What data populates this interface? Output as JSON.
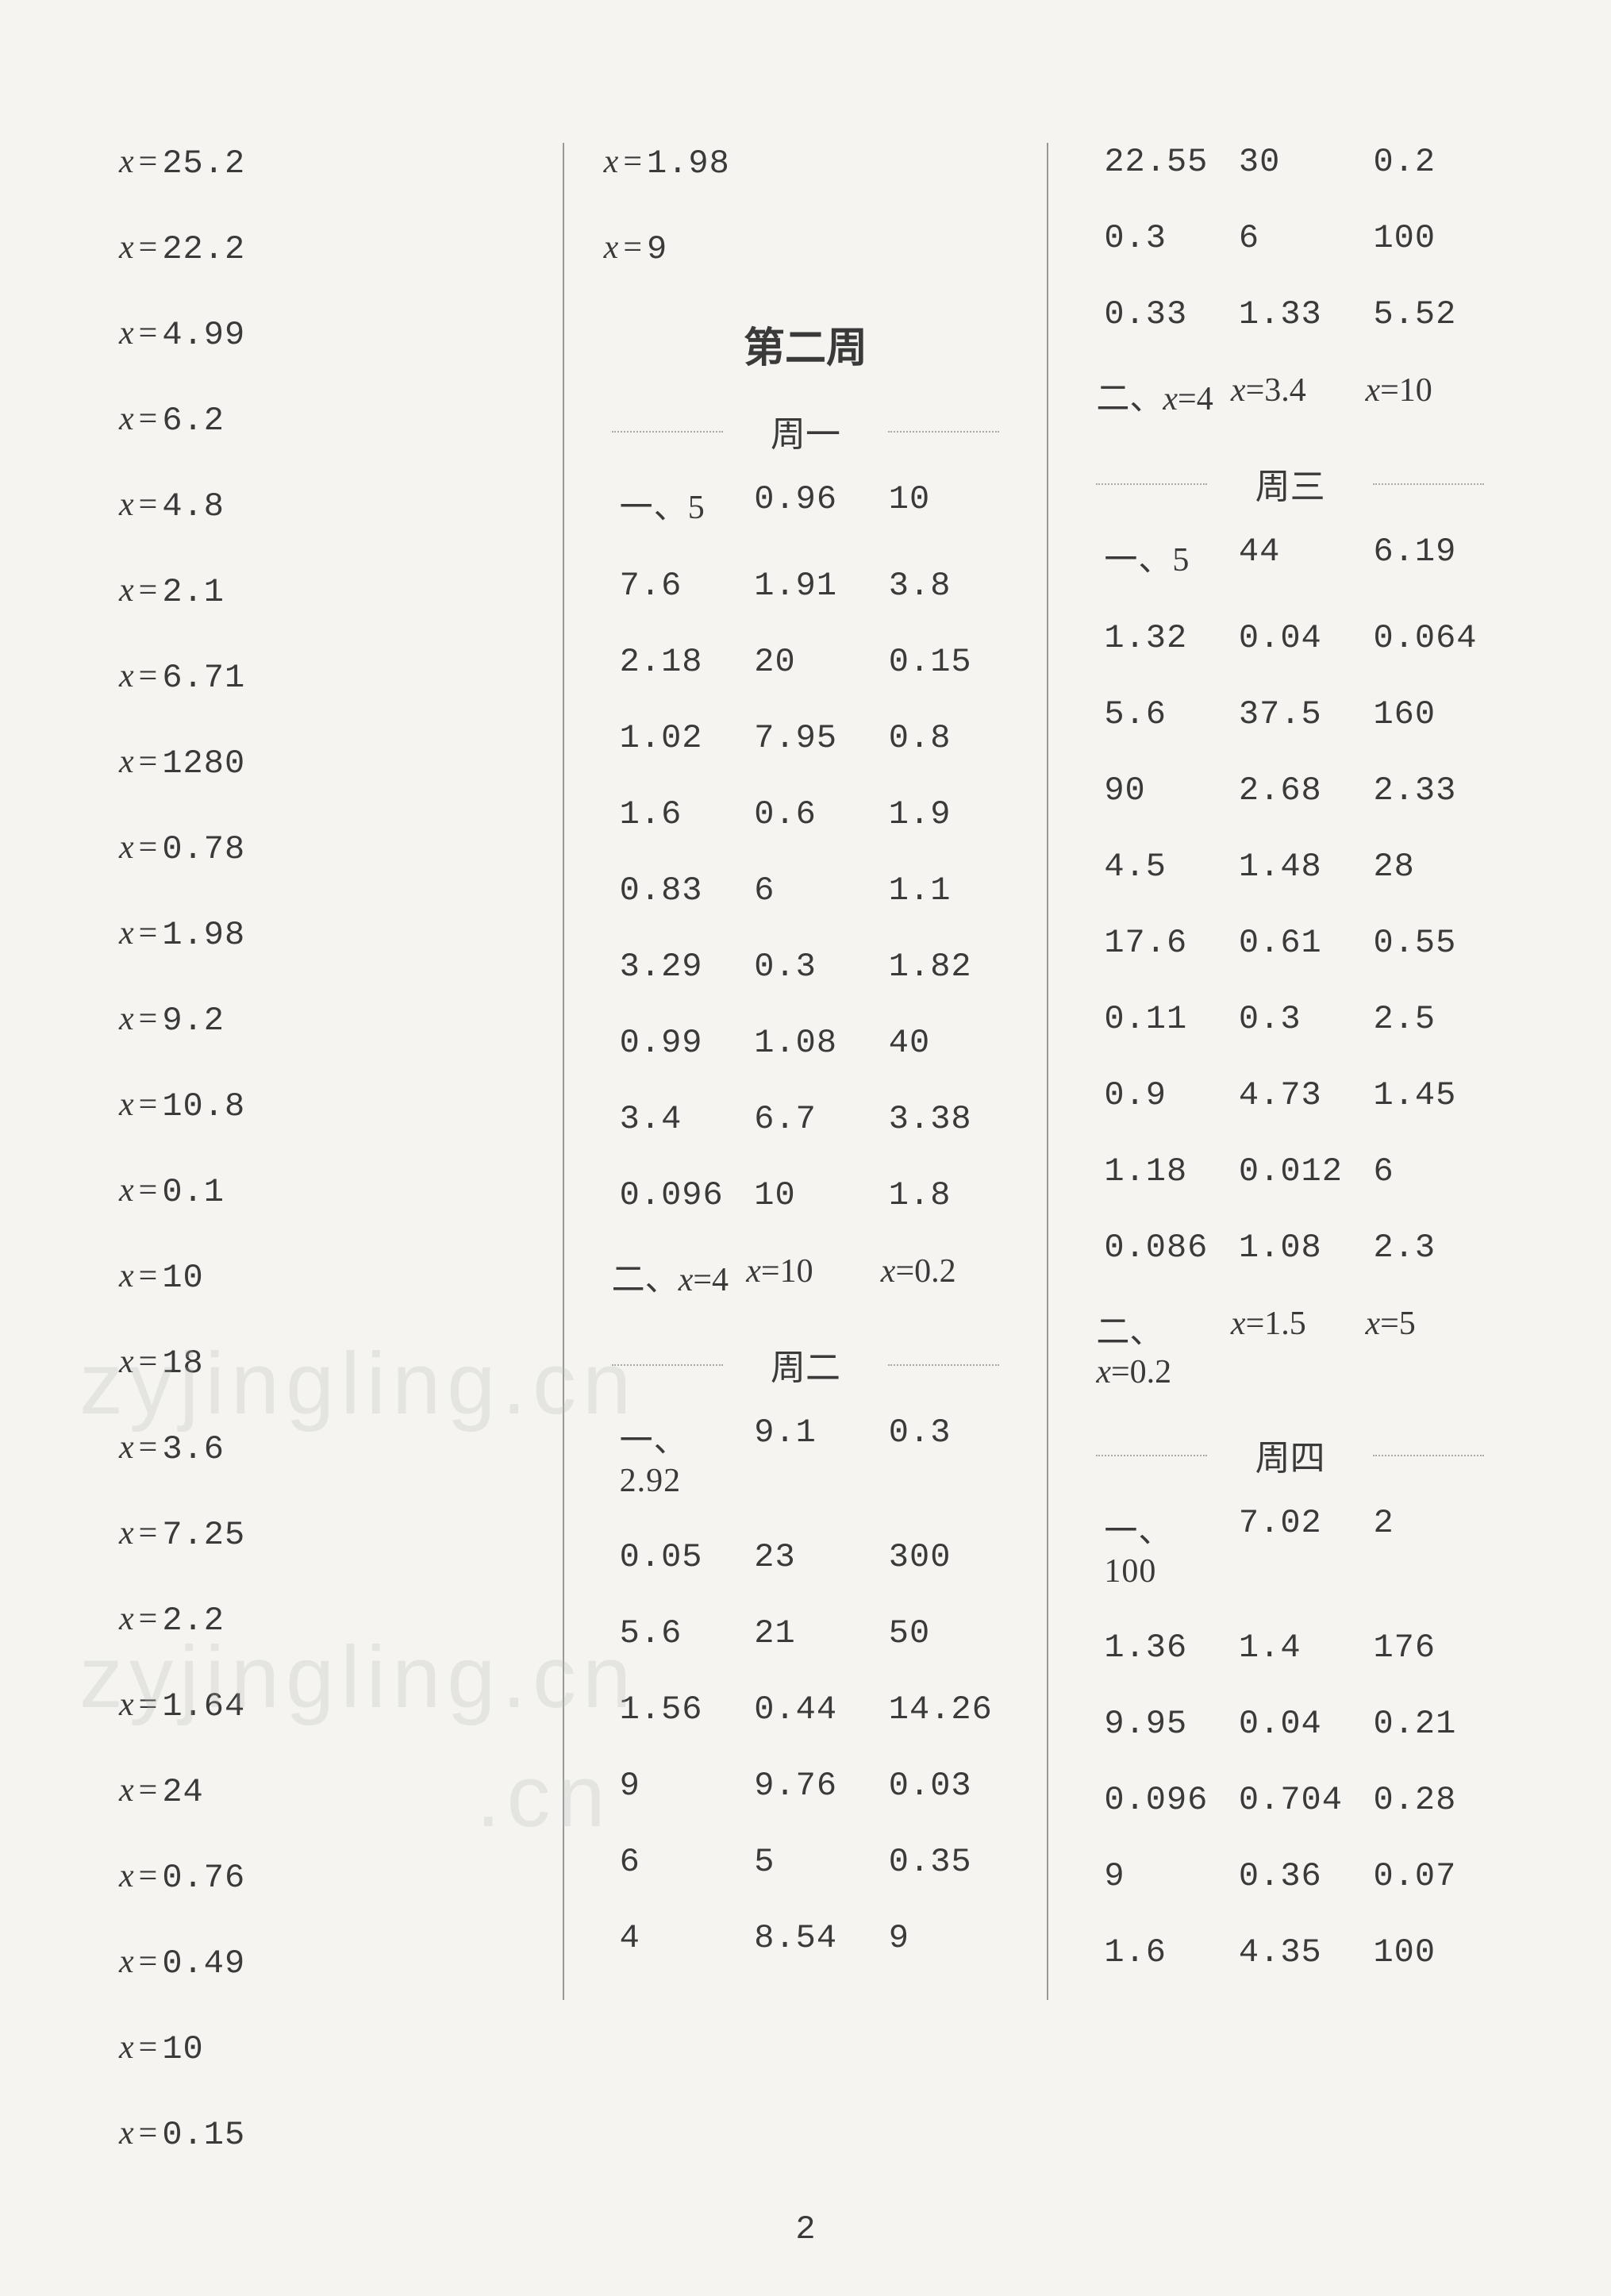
{
  "page_number": "2",
  "background_color": "#f5f4f0",
  "text_color": "#3a3a3a",
  "font_size_body": 42,
  "font_size_title": 52,
  "font_size_day": 44,
  "watermark_text": "zyjingling.cn",
  "col1": {
    "equations": [
      "25.2",
      "22.2",
      "4.99",
      "6.2",
      "4.8",
      "2.1",
      "6.71",
      "1280",
      "0.78",
      "1.98",
      "9.2",
      "10.8",
      "0.1",
      "10",
      "18",
      "3.6",
      "7.25",
      "2.2",
      "1.64",
      "24",
      "0.76",
      "0.49",
      "10",
      "0.15"
    ]
  },
  "col2": {
    "top_equations": [
      "1.98",
      "9"
    ],
    "week_title": "第二周",
    "days": {
      "mon": {
        "label": "周一",
        "section1_prefix": "一、",
        "section1_rows": [
          [
            "5",
            "0.96",
            "10"
          ],
          [
            "7.6",
            "1.91",
            "3.8"
          ],
          [
            "2.18",
            "20",
            "0.15"
          ],
          [
            "1.02",
            "7.95",
            "0.8"
          ],
          [
            "1.6",
            "0.6",
            "1.9"
          ],
          [
            "0.83",
            "6",
            "1.1"
          ],
          [
            "3.29",
            "0.3",
            "1.82"
          ],
          [
            "0.99",
            "1.08",
            "40"
          ],
          [
            "3.4",
            "6.7",
            "3.38"
          ],
          [
            "0.096",
            "10",
            "1.8"
          ]
        ],
        "section2_prefix": "二、",
        "section2_eq": [
          "x=4",
          "x=10",
          "x=0.2"
        ]
      },
      "tue": {
        "label": "周二",
        "section1_prefix": "一、",
        "section1_rows": [
          [
            "2.92",
            "9.1",
            "0.3"
          ],
          [
            "0.05",
            "23",
            "300"
          ],
          [
            "5.6",
            "21",
            "50"
          ],
          [
            "1.56",
            "0.44",
            "14.26"
          ],
          [
            "9",
            "9.76",
            "0.03"
          ],
          [
            "6",
            "5",
            "0.35"
          ],
          [
            "4",
            "8.54",
            "9"
          ]
        ]
      }
    }
  },
  "col3": {
    "top_rows": [
      [
        "22.55",
        "30",
        "0.2"
      ],
      [
        "0.3",
        "6",
        "100"
      ],
      [
        "0.33",
        "1.33",
        "5.52"
      ]
    ],
    "top_section2_prefix": "二、",
    "top_section2_eq": [
      "x=4",
      "x=3.4",
      "x=10"
    ],
    "days": {
      "wed": {
        "label": "周三",
        "section1_prefix": "一、",
        "section1_rows": [
          [
            "5",
            "44",
            "6.19"
          ],
          [
            "1.32",
            "0.04",
            "0.064"
          ],
          [
            "5.6",
            "37.5",
            "160"
          ],
          [
            "90",
            "2.68",
            "2.33"
          ],
          [
            "4.5",
            "1.48",
            "28"
          ],
          [
            "17.6",
            "0.61",
            "0.55"
          ],
          [
            "0.11",
            "0.3",
            "2.5"
          ],
          [
            "0.9",
            "4.73",
            "1.45"
          ],
          [
            "1.18",
            "0.012",
            "6"
          ],
          [
            "0.086",
            "1.08",
            "2.3"
          ]
        ],
        "section2_prefix": "二、",
        "section2_eq": [
          "x=0.2",
          "x=1.5",
          "x=5"
        ]
      },
      "thu": {
        "label": "周四",
        "section1_prefix": "一、",
        "section1_rows": [
          [
            "100",
            "7.02",
            "2"
          ],
          [
            "1.36",
            "1.4",
            "176"
          ],
          [
            "9.95",
            "0.04",
            "0.21"
          ],
          [
            "0.096",
            "0.704",
            "0.28"
          ],
          [
            "9",
            "0.36",
            "0.07"
          ],
          [
            "1.6",
            "4.35",
            "100"
          ]
        ]
      }
    }
  }
}
